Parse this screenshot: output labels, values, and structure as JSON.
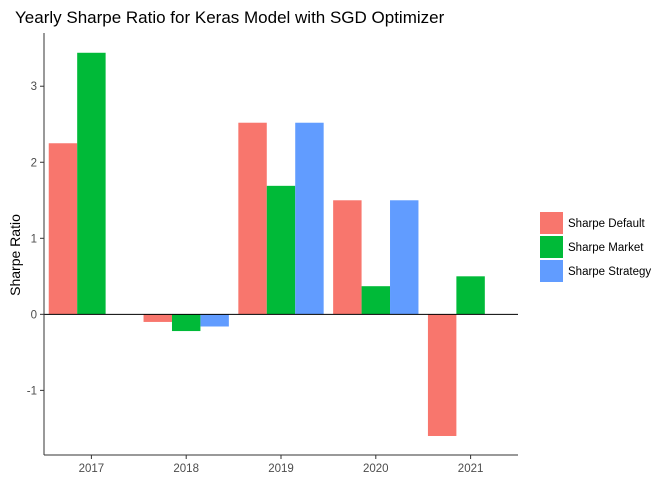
{
  "chart_data": {
    "type": "bar",
    "title": "Yearly Sharpe Ratio for Keras Model with SGD Optimizer",
    "xlabel": "",
    "ylabel": "Sharpe Ratio",
    "categories": [
      "2017",
      "2018",
      "2019",
      "2020",
      "2021"
    ],
    "series": [
      {
        "name": "Sharpe Default",
        "color": "#F8766D",
        "values": [
          2.25,
          -0.1,
          2.52,
          1.5,
          -1.6
        ]
      },
      {
        "name": "Sharpe Market",
        "color": "#00BA38",
        "values": [
          3.44,
          -0.22,
          1.69,
          0.37,
          0.5
        ]
      },
      {
        "name": "Sharpe Strategy",
        "color": "#619CFF",
        "values": [
          null,
          -0.16,
          2.52,
          1.5,
          null
        ]
      }
    ],
    "yticks": [
      -1,
      0,
      1,
      2,
      3
    ],
    "ylim": [
      -1.85,
      3.7
    ],
    "grid": false,
    "legend_position": "right"
  }
}
